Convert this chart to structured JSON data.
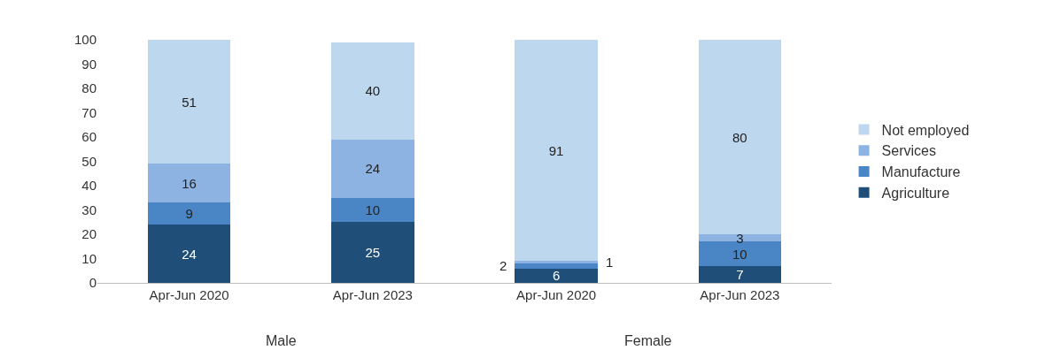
{
  "chart_data": {
    "type": "bar",
    "stacked": true,
    "categories": [
      "Apr-Jun 2020",
      "Apr-Jun 2023",
      "Apr-Jun 2020",
      "Apr-Jun 2023"
    ],
    "annotations": [
      "Male",
      "Female"
    ],
    "series": [
      {
        "name": "Agriculture",
        "color": "#1f4e79",
        "values": [
          24,
          25,
          6,
          7
        ]
      },
      {
        "name": "Manufacture",
        "color": "#4a86c5",
        "values": [
          9,
          10,
          2,
          10
        ]
      },
      {
        "name": "Services",
        "color": "#8db3e2",
        "values": [
          16,
          24,
          1,
          3
        ]
      },
      {
        "name": "Not employed",
        "color": "#bdd7ee",
        "values": [
          51,
          40,
          91,
          80
        ]
      }
    ],
    "ylim": [
      0,
      100
    ],
    "yticks": [
      0,
      10,
      20,
      30,
      40,
      50,
      60,
      70,
      80,
      90,
      100
    ],
    "data_labels": true,
    "legend": "right"
  }
}
